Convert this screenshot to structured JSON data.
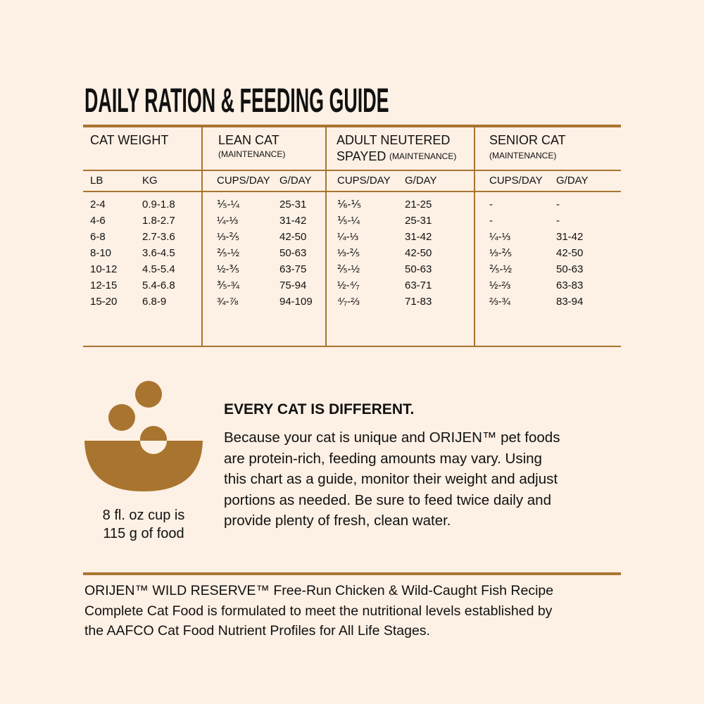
{
  "title": "DAILY RATION & FEEDING GUIDE",
  "table": {
    "groups": [
      {
        "label": "CAT WEIGHT"
      },
      {
        "label": "LEAN CAT",
        "note": "(MAINTENANCE)"
      },
      {
        "label": "ADULT NEUTERED",
        "label2": "SPAYED",
        "note": "(MAINTENANCE)"
      },
      {
        "label": "SENIOR CAT",
        "note": "(MAINTENANCE)"
      }
    ],
    "subheaders": [
      "LB",
      "KG",
      "CUPS/DAY",
      "G/DAY",
      "CUPS/DAY",
      "G/DAY",
      "CUPS/DAY",
      "G/DAY"
    ],
    "rows": [
      [
        "2-4",
        "0.9-1.8",
        "⅕-¼",
        "25-31",
        "⅙-⅕",
        "21-25",
        "-",
        "-"
      ],
      [
        "4-6",
        "1.8-2.7",
        "¼-⅓",
        "31-42",
        "⅕-¼",
        "25-31",
        "-",
        "-"
      ],
      [
        "6-8",
        "2.7-3.6",
        "⅓-⅖",
        "42-50",
        "¼-⅓",
        "31-42",
        "¼-⅓",
        "31-42"
      ],
      [
        "8-10",
        "3.6-4.5",
        "⅖-½",
        "50-63",
        "⅓-⅖",
        "42-50",
        "⅓-⅖",
        "42-50"
      ],
      [
        "10-12",
        "4.5-5.4",
        "½-⅗",
        "63-75",
        "⅖-½",
        "50-63",
        "⅖-½",
        "50-63"
      ],
      [
        "12-15",
        "5.4-6.8",
        "⅗-¾",
        "75-94",
        "½-⁴⁄₇",
        "63-71",
        "½-⅔",
        "63-83"
      ],
      [
        "15-20",
        "6.8-9",
        "¾-⅞",
        "94-109",
        "⁴⁄₇-⅔",
        "71-83",
        "⅔-¾",
        "83-94"
      ]
    ]
  },
  "cup_note": [
    "8 fl. oz cup is",
    "115 g of food"
  ],
  "info": {
    "heading": "EVERY CAT IS DIFFERENT.",
    "lines": [
      "Because your cat is unique and ORIJEN™ pet foods",
      "are protein-rich, feeding amounts may vary. Using",
      "this chart as a guide, monitor their weight and adjust",
      "portions as needed. Be sure to feed twice daily and",
      "provide plenty of fresh, clean water."
    ]
  },
  "footer": [
    "ORIJEN™ WILD RESERVE™ Free-Run Chicken & Wild-Caught Fish Recipe",
    "Complete Cat Food is formulated to meet the nutritional levels established by",
    "the AAFCO Cat Food Nutrient Profiles for All Life Stages."
  ]
}
